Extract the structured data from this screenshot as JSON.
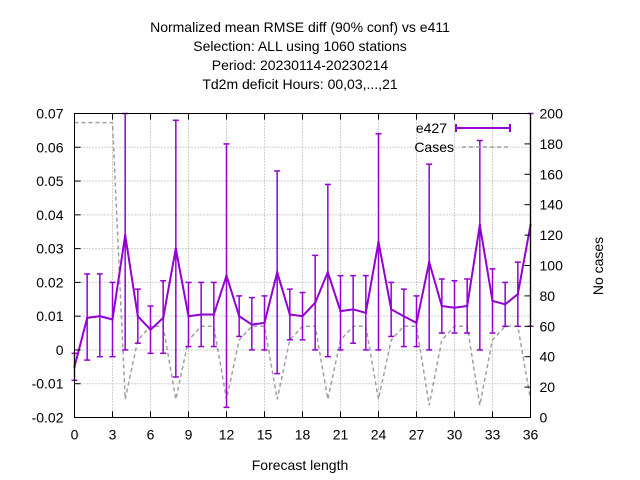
{
  "chart_data": {
    "type": "line",
    "title_lines": [
      "Normalized mean RMSE diff (90% conf) vs e411",
      "Selection: ALL using  1060 stations",
      "Period: 20230114-20230214",
      "Td2m deficit   Hours:  00,03,...,21"
    ],
    "xlabel": "Forecast length",
    "ylabel": "",
    "y2label": "No cases",
    "xlim": [
      0,
      36
    ],
    "ylim": [
      -0.02,
      0.07
    ],
    "y2lim": [
      0,
      200
    ],
    "xticks": [
      0,
      3,
      6,
      9,
      12,
      15,
      18,
      21,
      24,
      27,
      30,
      33,
      36
    ],
    "yticks": [
      -0.02,
      -0.01,
      0,
      0.01,
      0.02,
      0.03,
      0.04,
      0.05,
      0.06,
      0.07
    ],
    "yticklabels": [
      "-0.02",
      "-0.01",
      "0",
      "0.01",
      "0.02",
      "0.03",
      "0.04",
      "0.05",
      "0.06",
      "0.07"
    ],
    "y2ticks": [
      0,
      20,
      40,
      60,
      80,
      100,
      120,
      140,
      160,
      180,
      200
    ],
    "legend_position": "top-right",
    "x": [
      0,
      1,
      2,
      3,
      4,
      5,
      6,
      7,
      8,
      9,
      10,
      11,
      12,
      13,
      14,
      15,
      16,
      17,
      18,
      19,
      20,
      21,
      22,
      23,
      24,
      25,
      26,
      27,
      28,
      29,
      30,
      31,
      32,
      33,
      34,
      35,
      36
    ],
    "series": [
      {
        "name": "e427",
        "axis": "y1",
        "color": "#9400d3",
        "style": "errorbars",
        "values": [
          -0.005,
          0.0095,
          0.01,
          0.009,
          0.034,
          0.01,
          0.006,
          0.0095,
          0.03,
          0.01,
          0.0105,
          0.0105,
          0.022,
          0.01,
          0.0075,
          0.008,
          0.023,
          0.0105,
          0.01,
          0.014,
          0.023,
          0.0115,
          0.012,
          0.011,
          0.032,
          0.012,
          0.01,
          0.008,
          0.026,
          0.013,
          0.0125,
          0.013,
          0.037,
          0.0145,
          0.0135,
          0.0165,
          0.037
        ],
        "lower": [
          -0.009,
          -0.003,
          -0.002,
          -0.002,
          0.0,
          0.002,
          -0.001,
          -0.001,
          -0.008,
          0.001,
          0.001,
          0.001,
          -0.017,
          0.004,
          0.0,
          0.0,
          -0.007,
          0.003,
          0.003,
          0.0,
          -0.002,
          0.0,
          0.002,
          0.0,
          0.0,
          0.004,
          0.001,
          0.001,
          0.0,
          0.005,
          0.005,
          0.005,
          0.0,
          0.005,
          0.007,
          0.007,
          0.007
        ],
        "upper": [
          -0.001,
          0.0225,
          0.0225,
          0.02,
          0.07,
          0.018,
          0.013,
          0.0205,
          0.068,
          0.02,
          0.02,
          0.02,
          0.061,
          0.016,
          0.0155,
          0.016,
          0.053,
          0.018,
          0.017,
          0.028,
          0.049,
          0.022,
          0.022,
          0.022,
          0.064,
          0.02,
          0.018,
          0.016,
          0.055,
          0.021,
          0.0205,
          0.021,
          0.062,
          0.024,
          0.02,
          0.026,
          0.07
        ]
      },
      {
        "name": "Cases",
        "axis": "y2",
        "color": "#a0a0a0",
        "style": "dashed",
        "values": [
          194,
          194,
          194,
          194,
          12,
          51,
          60,
          60,
          12,
          51,
          60,
          60,
          12,
          51,
          60,
          60,
          12,
          51,
          60,
          60,
          12,
          51,
          60,
          60,
          12,
          51,
          60,
          60,
          8,
          51,
          60,
          60,
          8,
          51,
          60,
          60,
          12
        ]
      }
    ]
  }
}
